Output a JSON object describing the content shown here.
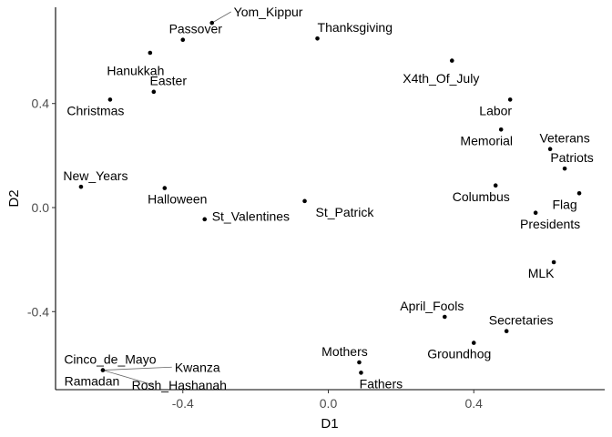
{
  "chart_data": {
    "type": "scatter",
    "title": "",
    "xlabel": "D1",
    "ylabel": "D2",
    "xlim": [
      -0.75,
      0.76
    ],
    "ylim": [
      -0.7,
      0.77
    ],
    "x_ticks": [
      -0.4,
      0.0,
      0.4
    ],
    "y_ticks": [
      -0.4,
      0.0,
      0.4
    ],
    "x_tick_labels": [
      "-0.4",
      "0.0",
      "0.4"
    ],
    "y_tick_labels": [
      "-0.4",
      "0.0",
      "0.4"
    ],
    "grid": false,
    "legend": "none",
    "point_color": "#000000",
    "points": [
      {
        "label": "Yom_Kippur",
        "x": -0.32,
        "y": 0.71,
        "dx": 0.06,
        "dy": 0.025,
        "anchor": "start",
        "leader": true
      },
      {
        "label": "Passover",
        "x": -0.4,
        "y": 0.645,
        "dx": 0.035,
        "dy": 0.025,
        "anchor": "middle",
        "leader": false
      },
      {
        "label": "Thanksgiving",
        "x": -0.03,
        "y": 0.65,
        "dx": 0.0,
        "dy": 0.025,
        "anchor": "start",
        "leader": false
      },
      {
        "label": "Hanukkah",
        "x": -0.49,
        "y": 0.595,
        "dx": -0.04,
        "dy": -0.085,
        "anchor": "middle",
        "leader": false
      },
      {
        "label": "X4th_Of_July",
        "x": 0.34,
        "y": 0.565,
        "dx": -0.03,
        "dy": -0.085,
        "anchor": "middle",
        "leader": false
      },
      {
        "label": "Easter",
        "x": -0.48,
        "y": 0.445,
        "dx": 0.04,
        "dy": 0.025,
        "anchor": "middle",
        "leader": false
      },
      {
        "label": "Christmas",
        "x": -0.6,
        "y": 0.415,
        "dx": -0.04,
        "dy": -0.06,
        "anchor": "middle",
        "leader": false
      },
      {
        "label": "Labor",
        "x": 0.5,
        "y": 0.415,
        "dx": -0.04,
        "dy": -0.06,
        "anchor": "middle",
        "leader": false
      },
      {
        "label": "Memorial",
        "x": 0.475,
        "y": 0.3,
        "dx": -0.04,
        "dy": -0.06,
        "anchor": "middle",
        "leader": false
      },
      {
        "label": "Veterans",
        "x": 0.61,
        "y": 0.225,
        "dx": 0.04,
        "dy": 0.025,
        "anchor": "middle",
        "leader": false
      },
      {
        "label": "Patriots",
        "x": 0.65,
        "y": 0.15,
        "dx": 0.02,
        "dy": 0.025,
        "anchor": "middle",
        "leader": false
      },
      {
        "label": "New_Years",
        "x": -0.68,
        "y": 0.08,
        "dx": 0.04,
        "dy": 0.025,
        "anchor": "middle",
        "leader": false
      },
      {
        "label": "Halloween",
        "x": -0.45,
        "y": 0.075,
        "dx": 0.035,
        "dy": -0.06,
        "anchor": "middle",
        "leader": false
      },
      {
        "label": "Columbus",
        "x": 0.46,
        "y": 0.085,
        "dx": -0.04,
        "dy": -0.06,
        "anchor": "middle",
        "leader": false
      },
      {
        "label": "Flag",
        "x": 0.69,
        "y": 0.055,
        "dx": -0.04,
        "dy": -0.06,
        "anchor": "middle",
        "leader": false
      },
      {
        "label": "St_Patrick",
        "x": -0.065,
        "y": 0.025,
        "dx": 0.03,
        "dy": -0.06,
        "anchor": "start",
        "leader": false
      },
      {
        "label": "Presidents",
        "x": 0.57,
        "y": -0.02,
        "dx": 0.04,
        "dy": -0.06,
        "anchor": "middle",
        "leader": false
      },
      {
        "label": "St_Valentines",
        "x": -0.34,
        "y": -0.045,
        "dx": 0.02,
        "dy": -0.006,
        "anchor": "start",
        "leader": false
      },
      {
        "label": "MLK",
        "x": 0.62,
        "y": -0.21,
        "dx": -0.035,
        "dy": -0.06,
        "anchor": "middle",
        "leader": false
      },
      {
        "label": "April_Fools",
        "x": 0.32,
        "y": -0.42,
        "dx": -0.035,
        "dy": 0.025,
        "anchor": "middle",
        "leader": false
      },
      {
        "label": "Secretaries",
        "x": 0.49,
        "y": -0.475,
        "dx": 0.04,
        "dy": 0.025,
        "anchor": "middle",
        "leader": false
      },
      {
        "label": "Groundhog",
        "x": 0.4,
        "y": -0.52,
        "dx": -0.04,
        "dy": -0.06,
        "anchor": "middle",
        "leader": false
      },
      {
        "label": "Mothers",
        "x": 0.085,
        "y": -0.595,
        "dx": -0.04,
        "dy": 0.025,
        "anchor": "middle",
        "leader": false
      },
      {
        "label": "Fathers",
        "x": 0.09,
        "y": -0.635,
        "dx": 0.055,
        "dy": -0.06,
        "anchor": "middle",
        "leader": false
      },
      {
        "label": "Cinco_de_Mayo",
        "x": -0.62,
        "y": -0.625,
        "dx": 0.02,
        "dy": 0.025,
        "anchor": "middle",
        "leader": false
      },
      {
        "label": "Kwanza",
        "x": -0.62,
        "y": -0.625,
        "dx": 0.26,
        "dy": -0.006,
        "anchor": "middle",
        "leader": true
      },
      {
        "label": "Ramadan",
        "x": -0.62,
        "y": -0.625,
        "dx": -0.03,
        "dy": -0.06,
        "anchor": "middle",
        "leader": false
      },
      {
        "label": "Rosh_Hashanah",
        "x": -0.62,
        "y": -0.625,
        "dx": 0.21,
        "dy": -0.075,
        "anchor": "middle",
        "leader": true
      }
    ]
  }
}
